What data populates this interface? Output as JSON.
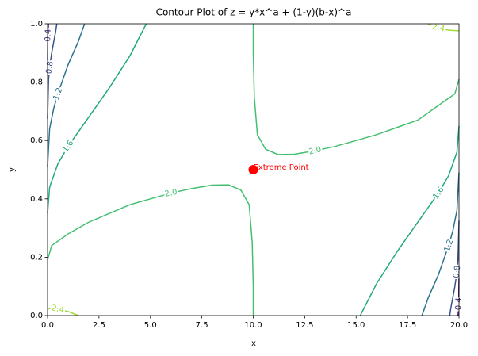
{
  "chart_data": {
    "type": "contour",
    "title": "Contour Plot of z = y*x^a + (1-y)(b-x)^a",
    "xlabel": "x",
    "ylabel": "y",
    "xlim": [
      0,
      20
    ],
    "ylim": [
      0,
      1
    ],
    "xticks": [
      {
        "value": 0,
        "label": "0.0"
      },
      {
        "value": 2.5,
        "label": "2.5"
      },
      {
        "value": 5,
        "label": "5.0"
      },
      {
        "value": 7.5,
        "label": "7.5"
      },
      {
        "value": 10,
        "label": "10.0"
      },
      {
        "value": 12.5,
        "label": "12.5"
      },
      {
        "value": 15,
        "label": "15.0"
      },
      {
        "value": 17.5,
        "label": "17.5"
      },
      {
        "value": 20,
        "label": "20.0"
      }
    ],
    "yticks": [
      {
        "value": 0,
        "label": "0.0"
      },
      {
        "value": 0.2,
        "label": "0.2"
      },
      {
        "value": 0.4,
        "label": "0.4"
      },
      {
        "value": 0.6,
        "label": "0.6"
      },
      {
        "value": 0.8,
        "label": "0.8"
      },
      {
        "value": 1,
        "label": "1.0"
      }
    ],
    "levels": [
      {
        "value": 0.4,
        "label": "0.4",
        "color": "#472c7a",
        "lines": [
          {
            "x": [
              0,
              0.01,
              0.02,
              0.04,
              0.045
            ],
            "y": [
              0.84,
              0.93,
              0.96,
              0.99,
              1
            ]
          },
          {
            "x": [
              20,
              19.99,
              19.98,
              19.96,
              19.955
            ],
            "y": [
              0.16,
              0.07,
              0.04,
              0.01,
              0
            ]
          }
        ]
      },
      {
        "value": 0.8,
        "label": "0.8",
        "color": "#3b528b",
        "lines": [
          {
            "x": [
              0,
              0.05,
              0.1,
              0.2,
              0.4,
              0.45
            ],
            "y": [
              0.675,
              0.81,
              0.85,
              0.9,
              0.976,
              1
            ]
          },
          {
            "x": [
              20,
              19.95,
              19.9,
              19.8,
              19.6,
              19.55
            ],
            "y": [
              0.325,
              0.19,
              0.15,
              0.1,
              0.024,
              0
            ]
          }
        ]
      },
      {
        "value": 1.2,
        "label": "1.2",
        "color": "#2c728e",
        "lines": [
          {
            "x": [
              0,
              0.1,
              0.3,
              0.5,
              1,
              1.5,
              1.8
            ],
            "y": [
              0.51,
              0.64,
              0.71,
              0.76,
              0.86,
              0.94,
              1
            ]
          },
          {
            "x": [
              20,
              19.9,
              19.7,
              19.5,
              19,
              18.5,
              18.2
            ],
            "y": [
              0.49,
              0.36,
              0.29,
              0.24,
              0.14,
              0.06,
              0
            ]
          }
        ]
      },
      {
        "value": 1.6,
        "label": "1.6",
        "color": "#22a884",
        "lines": [
          {
            "x": [
              0,
              0.1,
              0.5,
              1,
              2,
              3,
              4,
              4.8
            ],
            "y": [
              0.35,
              0.44,
              0.52,
              0.58,
              0.68,
              0.78,
              0.89,
              1
            ]
          },
          {
            "x": [
              20,
              19.9,
              19.5,
              19,
              18,
              17,
              16,
              15.2
            ],
            "y": [
              0.65,
              0.56,
              0.48,
              0.42,
              0.32,
              0.22,
              0.11,
              0
            ]
          }
        ]
      },
      {
        "value": 2,
        "label": "2.0",
        "color": "#44bf70",
        "lines": [
          {
            "x": [
              0,
              0.2,
              1,
              2,
              3,
              4,
              5,
              6,
              7,
              8,
              8.8,
              9.4,
              9.8,
              9.95,
              10,
              10
            ],
            "y": [
              0.19,
              0.24,
              0.28,
              0.32,
              0.35,
              0.38,
              0.4,
              0.42,
              0.435,
              0.447,
              0.448,
              0.43,
              0.38,
              0.25,
              0.1,
              0
            ]
          },
          {
            "x": [
              10,
              10,
              10.05,
              10.2,
              10.6,
              11.2,
              12,
              13,
              14,
              15,
              16,
              17,
              18,
              19,
              19.8,
              20
            ],
            "y": [
              1,
              0.9,
              0.75,
              0.62,
              0.57,
              0.552,
              0.553,
              0.565,
              0.58,
              0.6,
              0.62,
              0.645,
              0.67,
              0.72,
              0.76,
              0.81
            ]
          }
        ]
      },
      {
        "value": 2.4,
        "label": "2.4",
        "color": "#a0da39",
        "lines": [
          {
            "x": [
              18.5,
              19,
              19.5,
              20
            ],
            "y": [
              1,
              0.986,
              0.978,
              0.976
            ]
          },
          {
            "x": [
              0,
              0.5,
              1,
              1.5
            ],
            "y": [
              0.024,
              0.022,
              0.014,
              0
            ]
          }
        ]
      }
    ],
    "point": {
      "x": 10,
      "y": 0.5,
      "color": "#ff0000"
    },
    "annotation": "Extreme Point"
  }
}
